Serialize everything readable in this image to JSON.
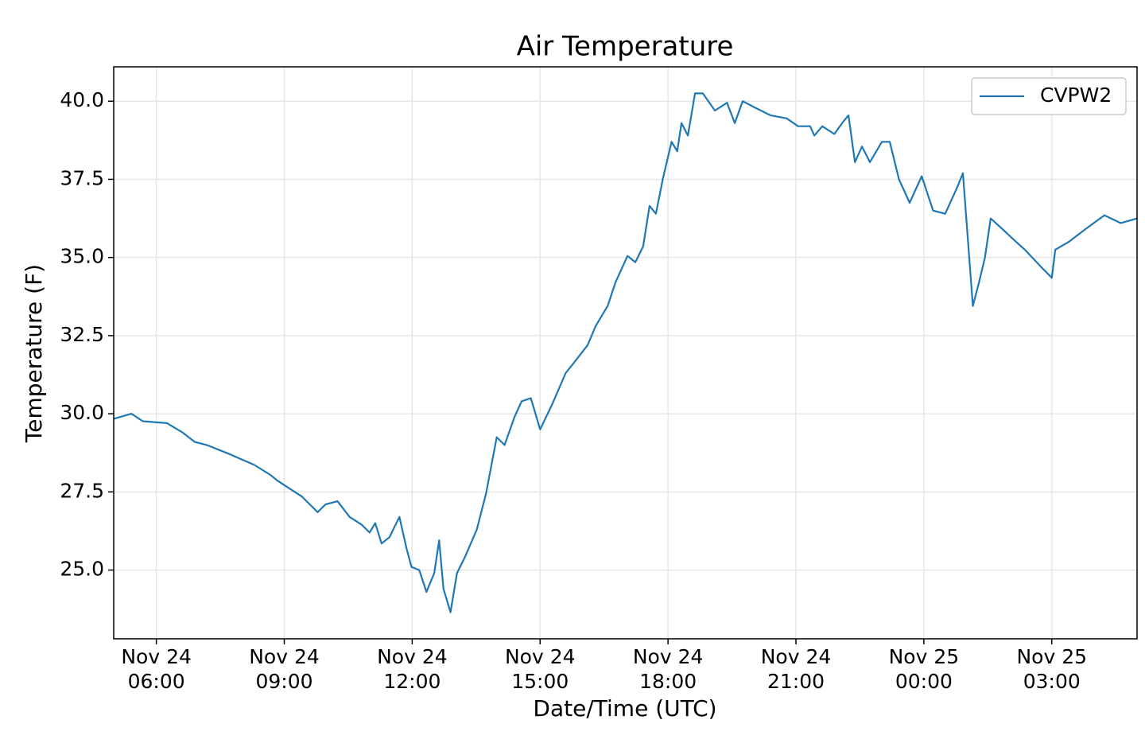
{
  "chart_data": {
    "type": "line",
    "title": "Air Temperature",
    "xlabel": "Date/Time (UTC)",
    "ylabel": "Temperature (F)",
    "x": [
      "Nov 24 05:00",
      "Nov 24 05:25",
      "Nov 24 05:41",
      "Nov 24 06:15",
      "Nov 24 06:37",
      "Nov 24 06:54",
      "Nov 24 07:11",
      "Nov 24 07:44",
      "Nov 24 08:18",
      "Nov 24 08:40",
      "Nov 24 08:51",
      "Nov 24 09:08",
      "Nov 24 09:25",
      "Nov 24 09:36",
      "Nov 24 09:47",
      "Nov 24 09:58",
      "Nov 24 10:15",
      "Nov 24 10:32",
      "Nov 24 10:49",
      "Nov 24 11:00",
      "Nov 24 11:08",
      "Nov 24 11:17",
      "Nov 24 11:28",
      "Nov 24 11:42",
      "Nov 24 11:52",
      "Nov 24 11:59",
      "Nov 24 12:10",
      "Nov 24 12:20",
      "Nov 24 12:31",
      "Nov 24 12:38",
      "Nov 24 12:44",
      "Nov 24 12:54",
      "Nov 24 13:03",
      "Nov 24 13:14",
      "Nov 24 13:31",
      "Nov 24 13:44",
      "Nov 24 13:59",
      "Nov 24 14:10",
      "Nov 24 14:24",
      "Nov 24 14:34",
      "Nov 24 14:47",
      "Nov 24 15:00",
      "Nov 24 15:17",
      "Nov 24 15:36",
      "Nov 24 15:50",
      "Nov 24 16:07",
      "Nov 24 16:18",
      "Nov 24 16:35",
      "Nov 24 16:46",
      "Nov 24 17:03",
      "Nov 24 17:14",
      "Nov 24 17:25",
      "Nov 24 17:34",
      "Nov 24 17:43",
      "Nov 24 17:53",
      "Nov 24 18:05",
      "Nov 24 18:13",
      "Nov 24 18:19",
      "Nov 24 18:28",
      "Nov 24 18:38",
      "Nov 24 18:49",
      "Nov 24 19:06",
      "Nov 24 19:23",
      "Nov 24 19:34",
      "Nov 24 19:45",
      "Nov 24 20:02",
      "Nov 24 20:24",
      "Nov 24 20:47",
      "Nov 24 21:03",
      "Nov 24 21:20",
      "Nov 24 21:26",
      "Nov 24 21:37",
      "Nov 24 21:54",
      "Nov 24 22:05",
      "Nov 24 22:14",
      "Nov 24 22:23",
      "Nov 24 22:33",
      "Nov 24 22:44",
      "Nov 24 23:01",
      "Nov 24 23:12",
      "Nov 24 23:25",
      "Nov 24 23:40",
      "Nov 24 23:57",
      "Nov 25 00:13",
      "Nov 25 00:30",
      "Nov 25 00:47",
      "Nov 25 00:55",
      "Nov 25 01:09",
      "Nov 25 01:17",
      "Nov 25 01:26",
      "Nov 25 01:34",
      "Nov 25 01:51",
      "Nov 25 02:05",
      "Nov 25 02:22",
      "Nov 25 02:45",
      "Nov 25 03:00",
      "Nov 25 03:05",
      "Nov 25 03:24",
      "Nov 25 03:47",
      "Nov 25 04:14",
      "Nov 25 04:37",
      "Nov 25 05:00"
    ],
    "series": [
      {
        "name": "CVPW2",
        "color": "#1f77b4",
        "values": [
          29.84,
          30.0,
          29.76,
          29.7,
          29.4,
          29.1,
          29.0,
          28.7,
          28.36,
          28.05,
          27.85,
          27.6,
          27.35,
          27.1,
          26.85,
          27.1,
          27.2,
          26.7,
          26.45,
          26.2,
          26.5,
          25.85,
          26.05,
          26.7,
          25.7,
          25.1,
          25.0,
          24.3,
          24.9,
          25.95,
          24.4,
          23.65,
          24.9,
          25.4,
          26.3,
          27.45,
          29.25,
          29.0,
          29.9,
          30.4,
          30.5,
          29.5,
          30.3,
          31.3,
          31.7,
          32.2,
          32.8,
          33.45,
          34.2,
          35.05,
          34.85,
          35.35,
          36.65,
          36.4,
          37.55,
          38.7,
          38.4,
          39.3,
          38.9,
          40.25,
          40.25,
          39.7,
          39.95,
          39.3,
          40.0,
          39.8,
          39.55,
          39.45,
          39.2,
          39.2,
          38.9,
          39.2,
          38.95,
          39.3,
          39.55,
          38.05,
          38.55,
          38.05,
          38.7,
          38.7,
          37.5,
          36.75,
          37.6,
          36.5,
          36.4,
          37.25,
          37.7,
          33.45,
          34.15,
          35.0,
          36.25,
          35.9,
          35.6,
          35.25,
          34.7,
          34.35,
          35.25,
          35.5,
          35.9,
          36.35,
          36.1,
          36.25
        ]
      }
    ],
    "xlim": [
      "Nov 24 05:00",
      "Nov 25 05:00"
    ],
    "xticks": [
      {
        "value": "Nov 24 06:00",
        "label": "Nov 24\n06:00"
      },
      {
        "value": "Nov 24 09:00",
        "label": "Nov 24\n09:00"
      },
      {
        "value": "Nov 24 12:00",
        "label": "Nov 24\n12:00"
      },
      {
        "value": "Nov 24 15:00",
        "label": "Nov 24\n15:00"
      },
      {
        "value": "Nov 24 18:00",
        "label": "Nov 24\n18:00"
      },
      {
        "value": "Nov 24 21:00",
        "label": "Nov 24\n21:00"
      },
      {
        "value": "Nov 25 00:00",
        "label": "Nov 25\n00:00"
      },
      {
        "value": "Nov 25 03:00",
        "label": "Nov 25\n03:00"
      }
    ],
    "ylim": [
      22.8,
      41.1
    ],
    "yticks": [
      {
        "value": 25,
        "label": "25.0"
      },
      {
        "value": 27.5,
        "label": "27.5"
      },
      {
        "value": 30,
        "label": "30.0"
      },
      {
        "value": 32.5,
        "label": "32.5"
      },
      {
        "value": 35,
        "label": "35.0"
      },
      {
        "value": 37.5,
        "label": "37.5"
      },
      {
        "value": 40,
        "label": "40.0"
      }
    ],
    "grid": true,
    "legend": "upper right"
  }
}
